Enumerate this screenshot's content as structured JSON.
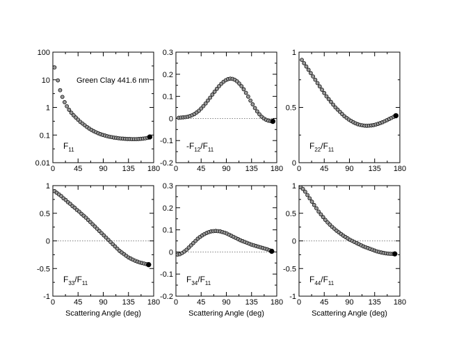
{
  "figure": {
    "annotation": "Green Clay 441.6 nm",
    "xlabel": "Scattering Angle (deg)"
  },
  "chart_data": [
    {
      "type": "scatter",
      "label_main": "F",
      "label_sub": "11",
      "label_rest": "",
      "label_sub2": "",
      "yscale": "log",
      "xlim": [
        0,
        180
      ],
      "ylim": [
        0.01,
        100
      ],
      "xticks": [
        0,
        45,
        90,
        135,
        180
      ],
      "yticks": [
        0.01,
        0.1,
        1,
        10,
        100
      ],
      "ytick_labels": [
        "0.01",
        "0.1",
        "1",
        "10",
        "100"
      ],
      "zero_line": false,
      "x": [
        3,
        9,
        13,
        17,
        21,
        25,
        29,
        33,
        37,
        41,
        45,
        49,
        53,
        57,
        61,
        65,
        69,
        73,
        77,
        81,
        85,
        89,
        93,
        97,
        101,
        105,
        109,
        113,
        117,
        121,
        125,
        129,
        133,
        137,
        141,
        145,
        149,
        153,
        157,
        161,
        165,
        169,
        173
      ],
      "y": [
        28,
        9.5,
        4.2,
        2.4,
        1.55,
        1.1,
        0.82,
        0.64,
        0.52,
        0.43,
        0.36,
        0.3,
        0.26,
        0.225,
        0.195,
        0.172,
        0.153,
        0.138,
        0.126,
        0.116,
        0.108,
        0.101,
        0.096,
        0.091,
        0.087,
        0.084,
        0.081,
        0.079,
        0.077,
        0.075,
        0.074,
        0.073,
        0.072,
        0.072,
        0.071,
        0.071,
        0.071,
        0.072,
        0.073,
        0.074,
        0.076,
        0.079,
        0.085
      ]
    },
    {
      "type": "scatter",
      "label_main": "-F",
      "label_sub": "12",
      "label_rest": "/F",
      "label_sub2": "11",
      "yscale": "linear",
      "xlim": [
        0,
        180
      ],
      "ylim": [
        -0.2,
        0.3
      ],
      "xticks": [
        0,
        45,
        90,
        135,
        180
      ],
      "yticks": [
        -0.2,
        -0.1,
        0,
        0.1,
        0.2,
        0.3
      ],
      "ytick_labels": [
        "-0.2",
        "-0.1",
        "0",
        "0.1",
        "0.2",
        "0.3"
      ],
      "zero_line": true,
      "x": [
        5,
        9,
        13,
        17,
        21,
        25,
        29,
        33,
        37,
        41,
        45,
        49,
        53,
        57,
        61,
        65,
        69,
        73,
        77,
        81,
        85,
        89,
        93,
        97,
        101,
        105,
        109,
        113,
        117,
        121,
        125,
        129,
        133,
        137,
        141,
        145,
        149,
        153,
        157,
        161,
        165,
        169,
        173
      ],
      "y": [
        0.003,
        0.004,
        0.005,
        0.006,
        0.008,
        0.011,
        0.015,
        0.02,
        0.027,
        0.035,
        0.045,
        0.056,
        0.068,
        0.081,
        0.094,
        0.108,
        0.121,
        0.134,
        0.146,
        0.157,
        0.166,
        0.173,
        0.178,
        0.18,
        0.179,
        0.175,
        0.168,
        0.158,
        0.146,
        0.132,
        0.116,
        0.099,
        0.081,
        0.064,
        0.047,
        0.032,
        0.019,
        0.008,
        0.0,
        -0.006,
        -0.01,
        -0.012,
        -0.013
      ]
    },
    {
      "type": "scatter",
      "label_main": "F",
      "label_sub": "22",
      "label_rest": "/F",
      "label_sub2": "11",
      "yscale": "linear",
      "xlim": [
        0,
        180
      ],
      "ylim": [
        0,
        1
      ],
      "xticks": [
        0,
        45,
        90,
        135,
        180
      ],
      "yticks": [
        0,
        0.5,
        1
      ],
      "ytick_labels": [
        "0",
        "0.5",
        "1"
      ],
      "zero_line": false,
      "x": [
        5,
        9,
        13,
        17,
        21,
        25,
        29,
        33,
        37,
        41,
        45,
        49,
        53,
        57,
        61,
        65,
        69,
        73,
        77,
        81,
        85,
        89,
        93,
        97,
        101,
        105,
        109,
        113,
        117,
        121,
        125,
        129,
        133,
        137,
        141,
        145,
        149,
        153,
        157,
        161,
        165,
        169,
        173
      ],
      "y": [
        0.93,
        0.9,
        0.87,
        0.84,
        0.81,
        0.78,
        0.75,
        0.72,
        0.69,
        0.66,
        0.63,
        0.6,
        0.575,
        0.55,
        0.525,
        0.5,
        0.48,
        0.46,
        0.44,
        0.42,
        0.405,
        0.39,
        0.378,
        0.366,
        0.356,
        0.348,
        0.342,
        0.338,
        0.335,
        0.334,
        0.335,
        0.337,
        0.34,
        0.345,
        0.351,
        0.358,
        0.366,
        0.375,
        0.385,
        0.395,
        0.405,
        0.415,
        0.425
      ]
    },
    {
      "type": "scatter",
      "label_main": "F",
      "label_sub": "33",
      "label_rest": "/F",
      "label_sub2": "11",
      "yscale": "linear",
      "xlim": [
        0,
        180
      ],
      "ylim": [
        -1,
        1
      ],
      "xticks": [
        0,
        45,
        90,
        135,
        180
      ],
      "yticks": [
        -1,
        -0.5,
        0,
        0.5,
        1
      ],
      "ytick_labels": [
        "-1",
        "-0.5",
        "0",
        "0.5",
        "1"
      ],
      "zero_line": true,
      "x": [
        3,
        7,
        11,
        15,
        19,
        23,
        27,
        31,
        35,
        39,
        43,
        47,
        51,
        55,
        59,
        63,
        67,
        71,
        75,
        79,
        83,
        87,
        91,
        95,
        99,
        103,
        107,
        111,
        115,
        119,
        123,
        127,
        131,
        135,
        139,
        143,
        147,
        151,
        155,
        159,
        163,
        167,
        171
      ],
      "y": [
        0.9,
        0.87,
        0.84,
        0.81,
        0.77,
        0.74,
        0.7,
        0.67,
        0.63,
        0.6,
        0.56,
        0.53,
        0.49,
        0.455,
        0.42,
        0.38,
        0.34,
        0.3,
        0.26,
        0.22,
        0.18,
        0.14,
        0.1,
        0.06,
        0.02,
        -0.02,
        -0.06,
        -0.1,
        -0.14,
        -0.18,
        -0.21,
        -0.24,
        -0.27,
        -0.3,
        -0.32,
        -0.34,
        -0.36,
        -0.375,
        -0.39,
        -0.4,
        -0.41,
        -0.42,
        -0.43
      ]
    },
    {
      "type": "scatter",
      "label_main": "F",
      "label_sub": "34",
      "label_rest": "/F",
      "label_sub2": "11",
      "yscale": "linear",
      "xlim": [
        0,
        180
      ],
      "ylim": [
        -0.2,
        0.3
      ],
      "xticks": [
        0,
        45,
        90,
        135,
        180
      ],
      "yticks": [
        -0.2,
        -0.1,
        0,
        0.1,
        0.2,
        0.3
      ],
      "ytick_labels": [
        "-0.2",
        "-0.1",
        "0",
        "0.1",
        "0.2",
        "0.3"
      ],
      "zero_line": true,
      "x": [
        3,
        7,
        11,
        15,
        19,
        23,
        27,
        31,
        35,
        39,
        43,
        47,
        51,
        55,
        59,
        63,
        67,
        71,
        75,
        79,
        83,
        87,
        91,
        95,
        99,
        103,
        107,
        111,
        115,
        119,
        123,
        127,
        131,
        135,
        139,
        143,
        147,
        151,
        155,
        159,
        163,
        167,
        171
      ],
      "y": [
        -0.012,
        -0.01,
        -0.005,
        0.002,
        0.01,
        0.02,
        0.03,
        0.04,
        0.05,
        0.06,
        0.068,
        0.075,
        0.081,
        0.086,
        0.09,
        0.093,
        0.094,
        0.095,
        0.094,
        0.093,
        0.09,
        0.087,
        0.083,
        0.078,
        0.073,
        0.068,
        0.063,
        0.058,
        0.053,
        0.049,
        0.045,
        0.041,
        0.037,
        0.033,
        0.03,
        0.027,
        0.024,
        0.021,
        0.018,
        0.015,
        0.012,
        0.008,
        0.003
      ]
    },
    {
      "type": "scatter",
      "label_main": "F",
      "label_sub": "44",
      "label_rest": "/F",
      "label_sub2": "11",
      "yscale": "linear",
      "xlim": [
        0,
        180
      ],
      "ylim": [
        -1,
        1
      ],
      "xticks": [
        0,
        45,
        90,
        135,
        180
      ],
      "yticks": [
        -1,
        -0.5,
        0,
        0.5,
        1
      ],
      "ytick_labels": [
        "-1",
        "-0.5",
        "0",
        "0.5",
        "1"
      ],
      "zero_line": true,
      "x": [
        3,
        7,
        11,
        15,
        19,
        23,
        27,
        31,
        35,
        39,
        43,
        47,
        51,
        55,
        59,
        63,
        67,
        71,
        75,
        79,
        83,
        87,
        91,
        95,
        99,
        103,
        107,
        111,
        115,
        119,
        123,
        127,
        131,
        135,
        139,
        143,
        147,
        151,
        155,
        159,
        163,
        167,
        171
      ],
      "y": [
        0.97,
        0.94,
        0.89,
        0.83,
        0.77,
        0.71,
        0.65,
        0.59,
        0.53,
        0.48,
        0.43,
        0.38,
        0.335,
        0.295,
        0.255,
        0.22,
        0.185,
        0.155,
        0.125,
        0.095,
        0.07,
        0.045,
        0.02,
        0.0,
        -0.02,
        -0.04,
        -0.06,
        -0.08,
        -0.1,
        -0.115,
        -0.13,
        -0.145,
        -0.16,
        -0.175,
        -0.19,
        -0.2,
        -0.21,
        -0.218,
        -0.225,
        -0.23,
        -0.233,
        -0.235,
        -0.235
      ]
    }
  ]
}
